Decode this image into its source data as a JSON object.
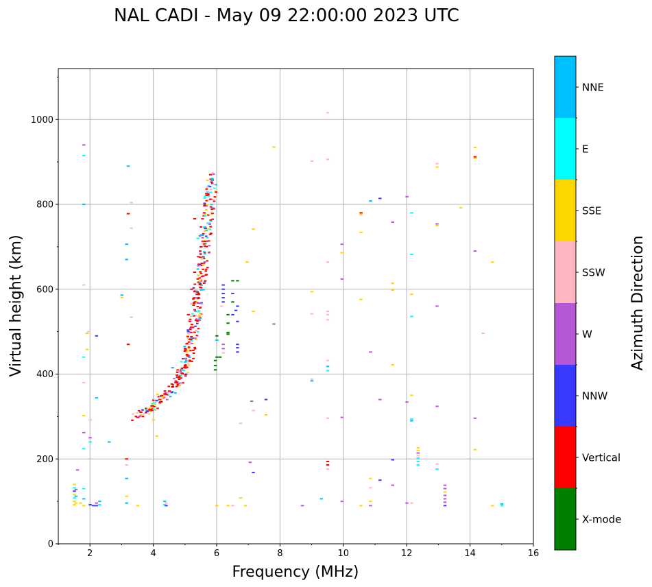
{
  "chart_data": {
    "type": "scatter",
    "title": "NAL CADI - May 09 22:00:00 2023 UTC",
    "xlabel": "Frequency (MHz)",
    "ylabel": "Virtual height (km)",
    "xlim": [
      1,
      16
    ],
    "ylim": [
      0,
      1120
    ],
    "xticks": [
      2,
      4,
      6,
      8,
      10,
      12,
      14,
      16
    ],
    "yticks": [
      0,
      200,
      400,
      600,
      800,
      1000
    ],
    "grid": true,
    "colorbar": {
      "label": "Azimuth Direction",
      "categories": [
        {
          "name": "X-mode",
          "color": "#008000"
        },
        {
          "name": "Vertical",
          "color": "#ff0000"
        },
        {
          "name": "NNW",
          "color": "#3a3aff"
        },
        {
          "name": "W",
          "color": "#b658d6"
        },
        {
          "name": "SSW",
          "color": "#ffb6c1"
        },
        {
          "name": "SSE",
          "color": "#ffd700"
        },
        {
          "name": "E",
          "color": "#00ffff"
        },
        {
          "name": "NNE",
          "color": "#00bfff"
        }
      ]
    },
    "bins": {
      "freq_step_mhz": 0.05,
      "height_step_km": 6
    },
    "trace": {
      "description": "F-layer echo trace",
      "points": [
        [
          3.5,
          300
        ],
        [
          3.8,
          312
        ],
        [
          4.0,
          325
        ],
        [
          4.2,
          338
        ],
        [
          4.4,
          352
        ],
        [
          4.6,
          368
        ],
        [
          4.8,
          385
        ],
        [
          5.0,
          410
        ],
        [
          5.1,
          440
        ],
        [
          5.2,
          480
        ],
        [
          5.3,
          525
        ],
        [
          5.4,
          575
        ],
        [
          5.5,
          625
        ],
        [
          5.6,
          690
        ],
        [
          5.7,
          760
        ],
        [
          5.8,
          820
        ],
        [
          5.85,
          870
        ]
      ]
    },
    "points": [
      {
        "f": 1.5,
        "h": 92,
        "d": "SSE"
      },
      {
        "f": 1.5,
        "h": 100,
        "d": "SSE"
      },
      {
        "f": 1.5,
        "h": 108,
        "d": "E"
      },
      {
        "f": 1.5,
        "h": 116,
        "d": "SSE"
      },
      {
        "f": 1.5,
        "h": 124,
        "d": "NNW"
      },
      {
        "f": 1.5,
        "h": 132,
        "d": "E"
      },
      {
        "f": 1.5,
        "h": 140,
        "d": "SSE"
      },
      {
        "f": 1.55,
        "h": 96,
        "d": "SSE"
      },
      {
        "f": 1.55,
        "h": 112,
        "d": "NNE"
      },
      {
        "f": 1.55,
        "h": 128,
        "d": "W"
      },
      {
        "f": 1.6,
        "h": 174,
        "d": "W"
      },
      {
        "f": 1.7,
        "h": 96,
        "d": "SSE"
      },
      {
        "f": 1.8,
        "h": 90,
        "d": "SSE"
      },
      {
        "f": 1.8,
        "h": 106,
        "d": "NNE"
      },
      {
        "f": 1.8,
        "h": 130,
        "d": "E"
      },
      {
        "f": 1.8,
        "h": 224,
        "d": "E"
      },
      {
        "f": 1.8,
        "h": 262,
        "d": "W"
      },
      {
        "f": 1.8,
        "h": 302,
        "d": "SSE"
      },
      {
        "f": 1.8,
        "h": 380,
        "d": "SSW"
      },
      {
        "f": 1.8,
        "h": 440,
        "d": "E"
      },
      {
        "f": 1.8,
        "h": 610,
        "d": "SSW"
      },
      {
        "f": 1.8,
        "h": 800,
        "d": "NNE"
      },
      {
        "f": 1.8,
        "h": 915,
        "d": "E"
      },
      {
        "f": 1.8,
        "h": 940,
        "d": "W"
      },
      {
        "f": 1.9,
        "h": 458,
        "d": "SSE"
      },
      {
        "f": 1.9,
        "h": 496,
        "d": "SSE"
      },
      {
        "f": 1.95,
        "h": 500,
        "d": "SSW"
      },
      {
        "f": 2.0,
        "h": 92,
        "d": "NNW"
      },
      {
        "f": 2.0,
        "h": 240,
        "d": "E"
      },
      {
        "f": 2.0,
        "h": 250,
        "d": "W"
      },
      {
        "f": 2.0,
        "h": 292,
        "d": "SSW"
      },
      {
        "f": 2.1,
        "h": 90,
        "d": "NNW"
      },
      {
        "f": 2.2,
        "h": 90,
        "d": "NNW"
      },
      {
        "f": 2.2,
        "h": 96,
        "d": "W"
      },
      {
        "f": 2.2,
        "h": 344,
        "d": "NNE"
      },
      {
        "f": 2.2,
        "h": 490,
        "d": "NNW"
      },
      {
        "f": 2.3,
        "h": 92,
        "d": "E"
      },
      {
        "f": 2.3,
        "h": 100,
        "d": "NNE"
      },
      {
        "f": 2.6,
        "h": 240,
        "d": "NNE"
      },
      {
        "f": 3.0,
        "h": 580,
        "d": "SSE"
      },
      {
        "f": 3.0,
        "h": 586,
        "d": "NNE"
      },
      {
        "f": 3.15,
        "h": 96,
        "d": "NNE"
      },
      {
        "f": 3.15,
        "h": 112,
        "d": "SSE"
      },
      {
        "f": 3.15,
        "h": 154,
        "d": "NNE"
      },
      {
        "f": 3.15,
        "h": 186,
        "d": "SSW"
      },
      {
        "f": 3.15,
        "h": 200,
        "d": "Vertical"
      },
      {
        "f": 3.15,
        "h": 670,
        "d": "NNE"
      },
      {
        "f": 3.15,
        "h": 706,
        "d": "NNE"
      },
      {
        "f": 3.2,
        "h": 470,
        "d": "Vertical"
      },
      {
        "f": 3.2,
        "h": 778,
        "d": "Vertical"
      },
      {
        "f": 3.2,
        "h": 890,
        "d": "NNE"
      },
      {
        "f": 3.3,
        "h": 534,
        "d": "SSW"
      },
      {
        "f": 3.3,
        "h": 744,
        "d": "SSW"
      },
      {
        "f": 3.3,
        "h": 804,
        "d": "SSW"
      },
      {
        "f": 3.5,
        "h": 90,
        "d": "SSE"
      },
      {
        "f": 3.5,
        "h": 298,
        "d": "Vertical"
      },
      {
        "f": 3.6,
        "h": 304,
        "d": "SSE"
      },
      {
        "f": 3.6,
        "h": 310,
        "d": "Vertical"
      },
      {
        "f": 3.8,
        "h": 312,
        "d": "NNW"
      },
      {
        "f": 3.9,
        "h": 320,
        "d": "SSE"
      },
      {
        "f": 4.0,
        "h": 328,
        "d": "SSE"
      },
      {
        "f": 4.0,
        "h": 292,
        "d": "SSE"
      },
      {
        "f": 4.1,
        "h": 254,
        "d": "SSE"
      },
      {
        "f": 4.1,
        "h": 338,
        "d": "NNW"
      },
      {
        "f": 4.2,
        "h": 340,
        "d": "Vertical"
      },
      {
        "f": 4.3,
        "h": 346,
        "d": "SSE"
      },
      {
        "f": 4.35,
        "h": 92,
        "d": "E"
      },
      {
        "f": 4.35,
        "h": 100,
        "d": "NNE"
      },
      {
        "f": 4.4,
        "h": 96,
        "d": "SSW"
      },
      {
        "f": 4.4,
        "h": 90,
        "d": "NNW"
      },
      {
        "f": 4.4,
        "h": 352,
        "d": "Vertical"
      },
      {
        "f": 4.5,
        "h": 360,
        "d": "Vertical"
      },
      {
        "f": 4.6,
        "h": 370,
        "d": "Vertical"
      },
      {
        "f": 4.6,
        "h": 415,
        "d": "NNE"
      },
      {
        "f": 4.7,
        "h": 380,
        "d": "Vertical"
      },
      {
        "f": 4.8,
        "h": 392,
        "d": "Vertical"
      },
      {
        "f": 4.9,
        "h": 402,
        "d": "Vertical"
      },
      {
        "f": 5.0,
        "h": 420,
        "d": "Vertical"
      },
      {
        "f": 5.0,
        "h": 460,
        "d": "Vertical"
      },
      {
        "f": 5.1,
        "h": 500,
        "d": "NNW"
      },
      {
        "f": 5.1,
        "h": 540,
        "d": "Vertical"
      },
      {
        "f": 5.2,
        "h": 600,
        "d": "Vertical"
      },
      {
        "f": 5.3,
        "h": 640,
        "d": "Vertical"
      },
      {
        "f": 5.3,
        "h": 766,
        "d": "Vertical"
      },
      {
        "f": 5.4,
        "h": 720,
        "d": "E"
      },
      {
        "f": 5.5,
        "h": 700,
        "d": "Vertical"
      },
      {
        "f": 5.6,
        "h": 780,
        "d": "Vertical"
      },
      {
        "f": 5.7,
        "h": 800,
        "d": "SSE"
      },
      {
        "f": 5.8,
        "h": 812,
        "d": "Vertical"
      },
      {
        "f": 5.8,
        "h": 870,
        "d": "Vertical"
      },
      {
        "f": 5.85,
        "h": 860,
        "d": "NNE"
      },
      {
        "f": 5.95,
        "h": 410,
        "d": "X-mode"
      },
      {
        "f": 5.95,
        "h": 420,
        "d": "X-mode"
      },
      {
        "f": 5.95,
        "h": 432,
        "d": "X-mode"
      },
      {
        "f": 6.0,
        "h": 440,
        "d": "X-mode"
      },
      {
        "f": 6.0,
        "h": 490,
        "d": "X-mode"
      },
      {
        "f": 6.0,
        "h": 480,
        "d": "NNE"
      },
      {
        "f": 6.0,
        "h": 90,
        "d": "SSE"
      },
      {
        "f": 6.1,
        "h": 440,
        "d": "X-mode"
      },
      {
        "f": 6.15,
        "h": 560,
        "d": "SSW"
      },
      {
        "f": 6.2,
        "h": 570,
        "d": "NNW"
      },
      {
        "f": 6.2,
        "h": 580,
        "d": "NNW"
      },
      {
        "f": 6.2,
        "h": 590,
        "d": "NNW"
      },
      {
        "f": 6.2,
        "h": 600,
        "d": "NNW"
      },
      {
        "f": 6.2,
        "h": 610,
        "d": "NNW"
      },
      {
        "f": 6.2,
        "h": 460,
        "d": "W"
      },
      {
        "f": 6.2,
        "h": 470,
        "d": "W"
      },
      {
        "f": 6.2,
        "h": 450,
        "d": "SSW"
      },
      {
        "f": 6.35,
        "h": 520,
        "d": "X-mode"
      },
      {
        "f": 6.35,
        "h": 540,
        "d": "X-mode"
      },
      {
        "f": 6.35,
        "h": 498,
        "d": "X-mode"
      },
      {
        "f": 6.35,
        "h": 494,
        "d": "X-mode"
      },
      {
        "f": 6.35,
        "h": 90,
        "d": "SSE"
      },
      {
        "f": 6.5,
        "h": 90,
        "d": "SSW"
      },
      {
        "f": 6.5,
        "h": 570,
        "d": "X-mode"
      },
      {
        "f": 6.5,
        "h": 620,
        "d": "X-mode"
      },
      {
        "f": 6.5,
        "h": 590,
        "d": "NNW"
      },
      {
        "f": 6.5,
        "h": 540,
        "d": "NNW"
      },
      {
        "f": 6.6,
        "h": 550,
        "d": "NNW"
      },
      {
        "f": 6.65,
        "h": 560,
        "d": "NNW"
      },
      {
        "f": 6.65,
        "h": 524,
        "d": "NNW"
      },
      {
        "f": 6.65,
        "h": 462,
        "d": "NNW"
      },
      {
        "f": 6.65,
        "h": 470,
        "d": "NNW"
      },
      {
        "f": 6.65,
        "h": 452,
        "d": "NNW"
      },
      {
        "f": 6.65,
        "h": 620,
        "d": "X-mode"
      },
      {
        "f": 6.75,
        "h": 284,
        "d": "SSW"
      },
      {
        "f": 6.75,
        "h": 108,
        "d": "SSE"
      },
      {
        "f": 6.9,
        "h": 90,
        "d": "SSE"
      },
      {
        "f": 6.95,
        "h": 664,
        "d": "SSE"
      },
      {
        "f": 7.05,
        "h": 192,
        "d": "W"
      },
      {
        "f": 7.15,
        "h": 168,
        "d": "NNW"
      },
      {
        "f": 7.1,
        "h": 336,
        "d": "W"
      },
      {
        "f": 7.15,
        "h": 314,
        "d": "SSW"
      },
      {
        "f": 7.15,
        "h": 548,
        "d": "SSE"
      },
      {
        "f": 7.15,
        "h": 742,
        "d": "SSE"
      },
      {
        "f": 7.55,
        "h": 304,
        "d": "SSE"
      },
      {
        "f": 7.55,
        "h": 340,
        "d": "NNW"
      },
      {
        "f": 7.8,
        "h": 518,
        "d": "W"
      },
      {
        "f": 7.8,
        "h": 935,
        "d": "SSE"
      },
      {
        "f": 8.7,
        "h": 90,
        "d": "W"
      },
      {
        "f": 9.0,
        "h": 384,
        "d": "NNE"
      },
      {
        "f": 9.0,
        "h": 388,
        "d": "SSW"
      },
      {
        "f": 9.0,
        "h": 542,
        "d": "SSW"
      },
      {
        "f": 9.0,
        "h": 594,
        "d": "SSE"
      },
      {
        "f": 9.0,
        "h": 902,
        "d": "SSW"
      },
      {
        "f": 9.3,
        "h": 106,
        "d": "NNE"
      },
      {
        "f": 9.5,
        "h": 176,
        "d": "SSW"
      },
      {
        "f": 9.5,
        "h": 186,
        "d": "Vertical"
      },
      {
        "f": 9.5,
        "h": 194,
        "d": "Vertical"
      },
      {
        "f": 9.5,
        "h": 296,
        "d": "SSW"
      },
      {
        "f": 9.5,
        "h": 408,
        "d": "E"
      },
      {
        "f": 9.5,
        "h": 418,
        "d": "NNE"
      },
      {
        "f": 9.5,
        "h": 432,
        "d": "SSW"
      },
      {
        "f": 9.5,
        "h": 528,
        "d": "SSW"
      },
      {
        "f": 9.5,
        "h": 540,
        "d": "SSW"
      },
      {
        "f": 9.5,
        "h": 548,
        "d": "SSW"
      },
      {
        "f": 9.5,
        "h": 664,
        "d": "SSW"
      },
      {
        "f": 9.5,
        "h": 906,
        "d": "SSW"
      },
      {
        "f": 9.5,
        "h": 1016,
        "d": "SSW"
      },
      {
        "f": 9.95,
        "h": 100,
        "d": "W"
      },
      {
        "f": 9.95,
        "h": 298,
        "d": "W"
      },
      {
        "f": 9.95,
        "h": 624,
        "d": "W"
      },
      {
        "f": 9.95,
        "h": 686,
        "d": "SSE"
      },
      {
        "f": 9.95,
        "h": 706,
        "d": "W"
      },
      {
        "f": 10.55,
        "h": 90,
        "d": "SSE"
      },
      {
        "f": 10.55,
        "h": 576,
        "d": "SSE"
      },
      {
        "f": 10.55,
        "h": 734,
        "d": "SSE"
      },
      {
        "f": 10.55,
        "h": 776,
        "d": "SSE"
      },
      {
        "f": 10.55,
        "h": 780,
        "d": "Vertical"
      },
      {
        "f": 10.85,
        "h": 90,
        "d": "W"
      },
      {
        "f": 10.85,
        "h": 100,
        "d": "SSE"
      },
      {
        "f": 10.85,
        "h": 132,
        "d": "SSW"
      },
      {
        "f": 10.85,
        "h": 154,
        "d": "SSE"
      },
      {
        "f": 10.85,
        "h": 452,
        "d": "W"
      },
      {
        "f": 10.85,
        "h": 808,
        "d": "NNE"
      },
      {
        "f": 11.15,
        "h": 150,
        "d": "NNW"
      },
      {
        "f": 11.15,
        "h": 340,
        "d": "W"
      },
      {
        "f": 11.15,
        "h": 814,
        "d": "NNW"
      },
      {
        "f": 11.55,
        "h": 138,
        "d": "W"
      },
      {
        "f": 11.55,
        "h": 198,
        "d": "NNW"
      },
      {
        "f": 11.55,
        "h": 422,
        "d": "SSE"
      },
      {
        "f": 11.55,
        "h": 598,
        "d": "SSE"
      },
      {
        "f": 11.55,
        "h": 614,
        "d": "SSE"
      },
      {
        "f": 11.55,
        "h": 758,
        "d": "W"
      },
      {
        "f": 12.0,
        "h": 96,
        "d": "W"
      },
      {
        "f": 12.0,
        "h": 334,
        "d": "W"
      },
      {
        "f": 12.0,
        "h": 818,
        "d": "W"
      },
      {
        "f": 12.15,
        "h": 96,
        "d": "SSW"
      },
      {
        "f": 12.15,
        "h": 290,
        "d": "NNE"
      },
      {
        "f": 12.15,
        "h": 294,
        "d": "E"
      },
      {
        "f": 12.15,
        "h": 350,
        "d": "SSE"
      },
      {
        "f": 12.15,
        "h": 536,
        "d": "E"
      },
      {
        "f": 12.15,
        "h": 588,
        "d": "SSE"
      },
      {
        "f": 12.15,
        "h": 682,
        "d": "E"
      },
      {
        "f": 12.15,
        "h": 780,
        "d": "E"
      },
      {
        "f": 12.35,
        "h": 186,
        "d": "E"
      },
      {
        "f": 12.35,
        "h": 194,
        "d": "E"
      },
      {
        "f": 12.35,
        "h": 202,
        "d": "E"
      },
      {
        "f": 12.35,
        "h": 208,
        "d": "SSW"
      },
      {
        "f": 12.35,
        "h": 214,
        "d": "W"
      },
      {
        "f": 12.35,
        "h": 220,
        "d": "SSE"
      },
      {
        "f": 12.35,
        "h": 226,
        "d": "SSE"
      },
      {
        "f": 12.95,
        "h": 176,
        "d": "E"
      },
      {
        "f": 12.95,
        "h": 188,
        "d": "SSW"
      },
      {
        "f": 12.95,
        "h": 324,
        "d": "W"
      },
      {
        "f": 12.95,
        "h": 560,
        "d": "W"
      },
      {
        "f": 12.95,
        "h": 750,
        "d": "SSE"
      },
      {
        "f": 12.95,
        "h": 754,
        "d": "W"
      },
      {
        "f": 12.95,
        "h": 888,
        "d": "SSE"
      },
      {
        "f": 12.95,
        "h": 896,
        "d": "SSW"
      },
      {
        "f": 13.2,
        "h": 90,
        "d": "NNW"
      },
      {
        "f": 13.2,
        "h": 98,
        "d": "W"
      },
      {
        "f": 13.2,
        "h": 106,
        "d": "W"
      },
      {
        "f": 13.2,
        "h": 114,
        "d": "W"
      },
      {
        "f": 13.2,
        "h": 122,
        "d": "SSE"
      },
      {
        "f": 13.2,
        "h": 130,
        "d": "W"
      },
      {
        "f": 13.2,
        "h": 138,
        "d": "W"
      },
      {
        "f": 13.7,
        "h": 792,
        "d": "SSE"
      },
      {
        "f": 14.15,
        "h": 222,
        "d": "SSE"
      },
      {
        "f": 14.15,
        "h": 296,
        "d": "W"
      },
      {
        "f": 14.15,
        "h": 690,
        "d": "W"
      },
      {
        "f": 14.15,
        "h": 908,
        "d": "SSE"
      },
      {
        "f": 14.15,
        "h": 912,
        "d": "Vertical"
      },
      {
        "f": 14.15,
        "h": 934,
        "d": "SSE"
      },
      {
        "f": 14.4,
        "h": 496,
        "d": "SSW"
      },
      {
        "f": 14.7,
        "h": 90,
        "d": "SSE"
      },
      {
        "f": 14.7,
        "h": 664,
        "d": "SSE"
      },
      {
        "f": 15.0,
        "h": 90,
        "d": "E"
      },
      {
        "f": 15.0,
        "h": 94,
        "d": "NNE"
      }
    ]
  }
}
